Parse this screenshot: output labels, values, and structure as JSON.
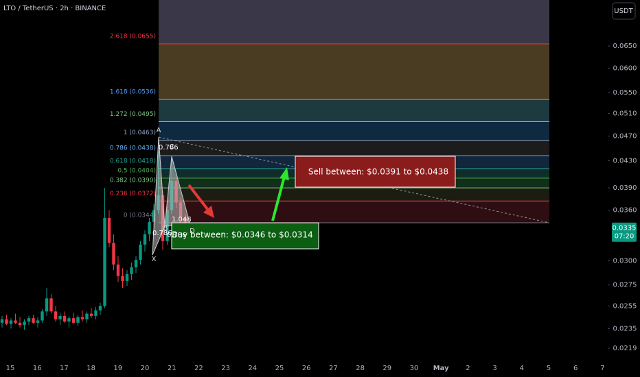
{
  "chart_data": {
    "type": "candlestick",
    "title": "LTO / TetherUS · 2h · BINANCE",
    "currency": "USDT",
    "log_scale": true,
    "ylim": [
      0.021,
      0.0767
    ],
    "yticks": [
      {
        "value": 0.065,
        "label": "0.0650"
      },
      {
        "value": 0.06,
        "label": "0.0600"
      },
      {
        "value": 0.055,
        "label": "0.0550"
      },
      {
        "value": 0.051,
        "label": "0.0510"
      },
      {
        "value": 0.047,
        "label": "0.0470"
      },
      {
        "value": 0.043,
        "label": "0.0430"
      },
      {
        "value": 0.039,
        "label": "0.0390"
      },
      {
        "value": 0.036,
        "label": "0.0360"
      },
      {
        "value": 0.03,
        "label": "0.0300"
      },
      {
        "value": 0.0275,
        "label": "0.0275"
      },
      {
        "value": 0.0255,
        "label": "0.0255"
      },
      {
        "value": 0.0235,
        "label": "0.0235"
      },
      {
        "value": 0.0219,
        "label": "0.0219"
      }
    ],
    "x_labels": [
      "15",
      "16",
      "17",
      "18",
      "19",
      "20",
      "21",
      "22",
      "23",
      "24",
      "25",
      "26",
      "27",
      "28",
      "29",
      "30",
      "May",
      "2",
      "3",
      "4",
      "5",
      "6",
      "7"
    ],
    "up_color": "#089981",
    "down_color": "#f23645",
    "ohlc": [
      [
        0.024,
        0.0246,
        0.0236,
        0.0243
      ],
      [
        0.0243,
        0.0247,
        0.0238,
        0.0239
      ],
      [
        0.0239,
        0.0244,
        0.0235,
        0.0242
      ],
      [
        0.0242,
        0.0248,
        0.0239,
        0.024
      ],
      [
        0.024,
        0.0245,
        0.0236,
        0.0238
      ],
      [
        0.0238,
        0.0243,
        0.0234,
        0.0241
      ],
      [
        0.0241,
        0.0246,
        0.0238,
        0.0244
      ],
      [
        0.0244,
        0.0247,
        0.0239,
        0.024
      ],
      [
        0.024,
        0.0245,
        0.0236,
        0.0242
      ],
      [
        0.0242,
        0.0252,
        0.024,
        0.025
      ],
      [
        0.025,
        0.0272,
        0.0246,
        0.0262
      ],
      [
        0.0262,
        0.0266,
        0.0248,
        0.025
      ],
      [
        0.025,
        0.0255,
        0.0241,
        0.0243
      ],
      [
        0.0243,
        0.0249,
        0.0238,
        0.0246
      ],
      [
        0.0246,
        0.025,
        0.024,
        0.0241
      ],
      [
        0.0241,
        0.0246,
        0.0236,
        0.0244
      ],
      [
        0.0244,
        0.0249,
        0.0239,
        0.024
      ],
      [
        0.024,
        0.0247,
        0.0237,
        0.0245
      ],
      [
        0.0245,
        0.0251,
        0.0241,
        0.0243
      ],
      [
        0.0243,
        0.025,
        0.024,
        0.0248
      ],
      [
        0.0248,
        0.0253,
        0.0244,
        0.0246
      ],
      [
        0.0246,
        0.0254,
        0.0243,
        0.0251
      ],
      [
        0.0251,
        0.0258,
        0.0247,
        0.0255
      ],
      [
        0.0255,
        0.039,
        0.0253,
        0.035
      ],
      [
        0.035,
        0.036,
        0.0315,
        0.032
      ],
      [
        0.032,
        0.033,
        0.029,
        0.0296
      ],
      [
        0.0296,
        0.0305,
        0.0278,
        0.0284
      ],
      [
        0.0284,
        0.0292,
        0.0272,
        0.0279
      ],
      [
        0.0279,
        0.029,
        0.0274,
        0.0286
      ],
      [
        0.0286,
        0.0298,
        0.028,
        0.0293
      ],
      [
        0.0293,
        0.0305,
        0.0287,
        0.0301
      ],
      [
        0.0301,
        0.0322,
        0.0296,
        0.0318
      ],
      [
        0.0318,
        0.0335,
        0.031,
        0.033
      ],
      [
        0.033,
        0.035,
        0.0322,
        0.0345
      ],
      [
        0.0345,
        0.0368,
        0.0338,
        0.036
      ],
      [
        0.036,
        0.0445,
        0.0355,
        0.038
      ],
      [
        0.038,
        0.0385,
        0.0312,
        0.0322
      ],
      [
        0.0322,
        0.0365,
        0.0318,
        0.036
      ],
      [
        0.036,
        0.0438,
        0.0355,
        0.04
      ],
      [
        0.04,
        0.0405,
        0.0362,
        0.037
      ],
      [
        0.037,
        0.0376,
        0.034,
        0.035
      ],
      [
        0.035,
        0.0356,
        0.033,
        0.0335
      ]
    ],
    "fib_levels": [
      {
        "value": 0.0655,
        "label": "2.618 (0.0655)",
        "color": "#f23645"
      },
      {
        "value": 0.0536,
        "label": "1.618 (0.0536)",
        "color": "#5b9cf6"
      },
      {
        "value": 0.0495,
        "label": "1.272 (0.0495)",
        "color": "#81c784"
      },
      {
        "value": 0.0463,
        "label": "1 (0.0463)",
        "color": "#8fa6c4"
      },
      {
        "value": 0.0438,
        "label": "0.786 (0.0438)",
        "color": "#64b5f6"
      },
      {
        "value": 0.0418,
        "label": "0.618 (0.0418)",
        "color": "#26a69a"
      },
      {
        "value": 0.0404,
        "label": "0.5 (0.0404)",
        "color": "#4caf50"
      },
      {
        "value": 0.039,
        "label": "0.382 (0.0390)",
        "color": "#81c784"
      },
      {
        "value": 0.0372,
        "label": "0.236 (0.0372)",
        "color": "#f23645"
      },
      {
        "value": 0.0344,
        "label": "0 (0.0344)",
        "color": "#787b86"
      }
    ],
    "fib_fills": [
      "#3a3848",
      "#4a3c22",
      "#1d3a40",
      "#0e2a40",
      "#1c1c1c",
      "#12263c",
      "#0f2e2b",
      "#11301a",
      "#1b1d12",
      "#2e0e12"
    ],
    "pattern_points": [
      "X",
      "A",
      "B",
      "C",
      "D"
    ],
    "pattern_ratios": [
      "0.786",
      "0.786",
      "0.786",
      "1.048"
    ],
    "sell_note": "Sell between: $0.0391 to $0.0438",
    "buy_note": "Buy between: $0.0346 to $0.0314",
    "last_price": {
      "value": 0.0335,
      "label": "0.0335"
    },
    "countdown": "07:20"
  }
}
